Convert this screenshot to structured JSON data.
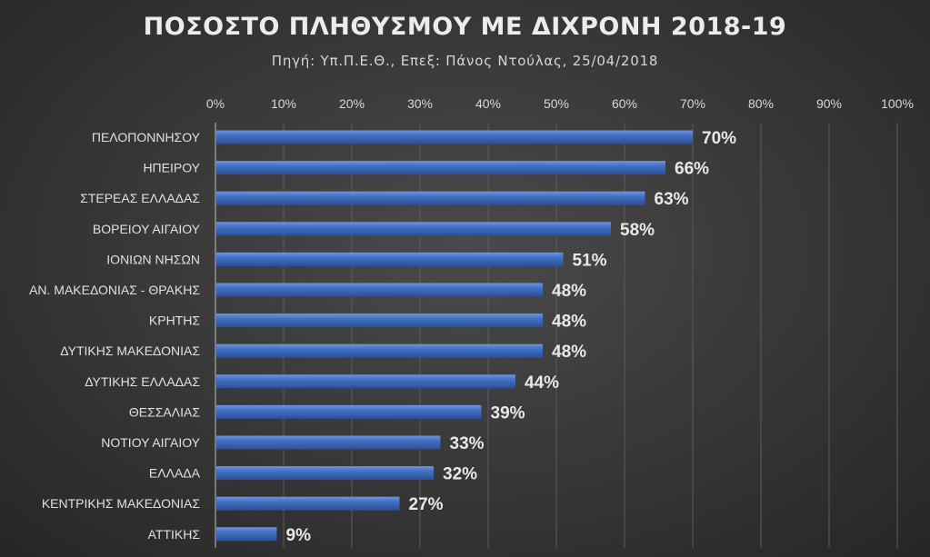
{
  "chart_data": {
    "type": "bar",
    "orientation": "horizontal",
    "title": "ΠΟΣΟΣΤΟ ΠΛΗΘΥΣΜΟΥ ΜΕ ΔΙΧΡΟΝΗ 2018-19",
    "subtitle": "Πηγή: Υπ.Π.Ε.Θ., Επεξ: Πάνος Ντούλας, 25/04/2018",
    "xlim": [
      0,
      100
    ],
    "x_ticks": [
      "0%",
      "10%",
      "20%",
      "30%",
      "40%",
      "50%",
      "60%",
      "70%",
      "80%",
      "90%",
      "100%"
    ],
    "grid": true,
    "axis_position": "top",
    "categories": [
      "ΠΕΛΟΠΟΝΝΗΣΟΥ",
      "ΗΠΕΙΡΟΥ",
      "ΣΤΕΡΕΑΣ ΕΛΛΑΔΑΣ",
      "ΒΟΡΕΙΟΥ ΑΙΓΑΙΟΥ",
      "ΙΟΝΙΩΝ ΝΗΣΩΝ",
      "ΑΝ. ΜΑΚΕΔΟΝΙΑΣ - ΘΡΑΚΗΣ",
      "ΚΡΗΤΗΣ",
      "ΔΥΤΙΚΗΣ ΜΑΚΕΔΟΝΙΑΣ",
      "ΔΥΤΙΚΗΣ ΕΛΛΑΔΑΣ",
      "ΘΕΣΣΑΛΙΑΣ",
      "ΝΟΤΙΟΥ ΑΙΓΑΙΟΥ",
      "ΕΛΛΑΔΑ",
      "ΚΕΝΤΡΙΚΗΣ ΜΑΚΕΔΟΝΙΑΣ",
      "ΑΤΤΙΚΗΣ"
    ],
    "values": [
      70,
      66,
      63,
      58,
      51,
      48,
      48,
      48,
      44,
      39,
      33,
      32,
      27,
      9
    ],
    "labels": [
      "70%",
      "66%",
      "63%",
      "58%",
      "51%",
      "48%",
      "48%",
      "48%",
      "44%",
      "39%",
      "33%",
      "32%",
      "27%",
      "9%"
    ],
    "bar_color": "#4472C4",
    "bar_highlight": "#6f95e0",
    "bar_shadow": "#2c4f99"
  }
}
